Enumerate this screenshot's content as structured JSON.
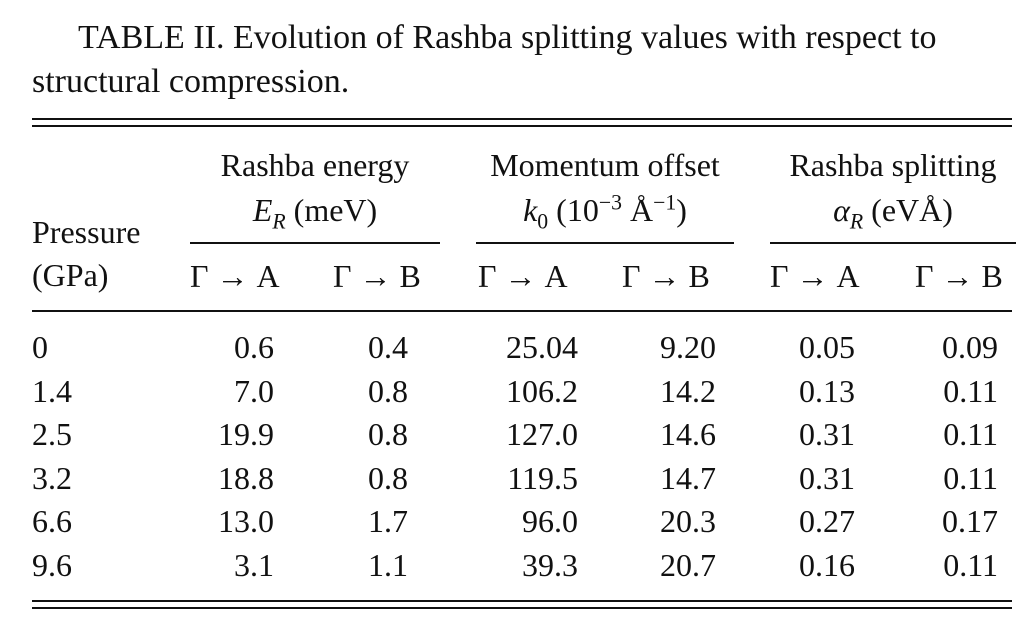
{
  "caption": {
    "label": "TABLE II.",
    "line1_rest": "Evolution of Rashba splitting values with respect to",
    "line2": "structural compression."
  },
  "header": {
    "pressure": "Pressure",
    "pressure_unit": "(GPa)",
    "groups": [
      {
        "title": "Rashba energy",
        "symbol": "E",
        "subscript": "R",
        "unit": "(meV)"
      },
      {
        "title": "Momentum offset",
        "symbol": "k",
        "subscript": "0",
        "unit_pre": "(10",
        "unit_sup": "−3",
        "unit_mid": "Å",
        "unit_sup2": "−1",
        "unit_post": ")"
      },
      {
        "title": "Rashba splitting",
        "symbol": "α",
        "subscript": "R",
        "unit": "(eVÅ)"
      }
    ],
    "subcols": [
      "Γ → A",
      "Γ → B",
      "Γ → A",
      "Γ → B",
      "Γ → A",
      "Γ → B"
    ]
  },
  "rows": [
    {
      "pressure": "0",
      "values": [
        "0.6",
        "0.4",
        "25.04",
        "9.20",
        "0.05",
        "0.09"
      ]
    },
    {
      "pressure": "1.4",
      "values": [
        "7.0",
        "0.8",
        "106.2",
        "14.2",
        "0.13",
        "0.11"
      ]
    },
    {
      "pressure": "2.5",
      "values": [
        "19.9",
        "0.8",
        "127.0",
        "14.6",
        "0.31",
        "0.11"
      ]
    },
    {
      "pressure": "3.2",
      "values": [
        "18.8",
        "0.8",
        "119.5",
        "14.7",
        "0.31",
        "0.11"
      ]
    },
    {
      "pressure": "6.6",
      "values": [
        "13.0",
        "1.7",
        "96.0",
        "20.3",
        "0.27",
        "0.17"
      ]
    },
    {
      "pressure": "9.6",
      "values": [
        "3.1",
        "1.1",
        "39.3",
        "20.7",
        "0.16",
        "0.11"
      ]
    }
  ]
}
